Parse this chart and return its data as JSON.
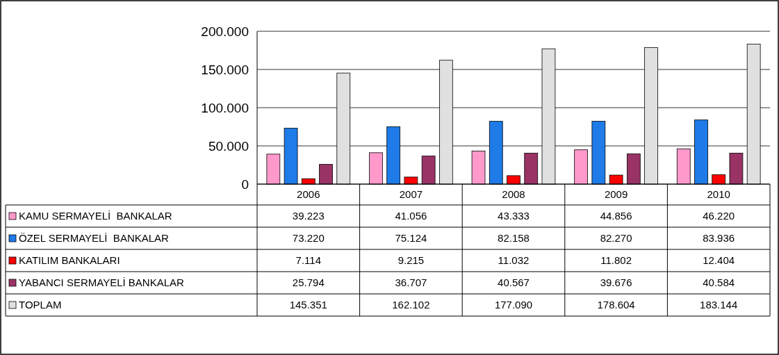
{
  "chart_data": {
    "type": "bar",
    "categories": [
      "2006",
      "2007",
      "2008",
      "2009",
      "2010"
    ],
    "ylim": [
      0,
      200000
    ],
    "yticks": [
      0,
      {
        "value": 50000,
        "label": "50.000"
      },
      {
        "value": 100000,
        "label": "100.000"
      },
      {
        "value": 150000,
        "label": "150.000"
      },
      {
        "value": 200000,
        "label": "200.000"
      }
    ],
    "grid": "y",
    "legend": "bottom",
    "series": [
      {
        "name": "KAMU SERMAYELİ  BANKALAR",
        "color": "#ff99cc",
        "values": [
          39223,
          41056,
          43333,
          44856,
          46220
        ],
        "value_labels": [
          "39.223",
          "41.056",
          "43.333",
          "44.856",
          "46.220"
        ]
      },
      {
        "name": "ÖZEL SERMAYELİ  BANKALAR",
        "color": "#1e7be8",
        "values": [
          73220,
          75124,
          82158,
          82270,
          83936
        ],
        "value_labels": [
          "73.220",
          "75.124",
          "82.158",
          "82.270",
          "83.936"
        ]
      },
      {
        "name": "KATILIM BANKALARI",
        "color": "#ff0000",
        "values": [
          7114,
          9215,
          11032,
          11802,
          12404
        ],
        "value_labels": [
          "7.114",
          "9.215",
          "11.032",
          "11.802",
          "12.404"
        ]
      },
      {
        "name": "YABANCI SERMAYELİ BANKALAR",
        "color": "#993366",
        "values": [
          25794,
          36707,
          40567,
          39676,
          40584
        ],
        "value_labels": [
          "25.794",
          "36.707",
          "40.567",
          "39.676",
          "40.584"
        ]
      },
      {
        "name": "TOPLAM",
        "color": "#e0e0e0",
        "values": [
          145351,
          162102,
          177090,
          178604,
          183144
        ],
        "value_labels": [
          "145.351",
          "162.102",
          "177.090",
          "178.604",
          "183.144"
        ]
      }
    ]
  }
}
